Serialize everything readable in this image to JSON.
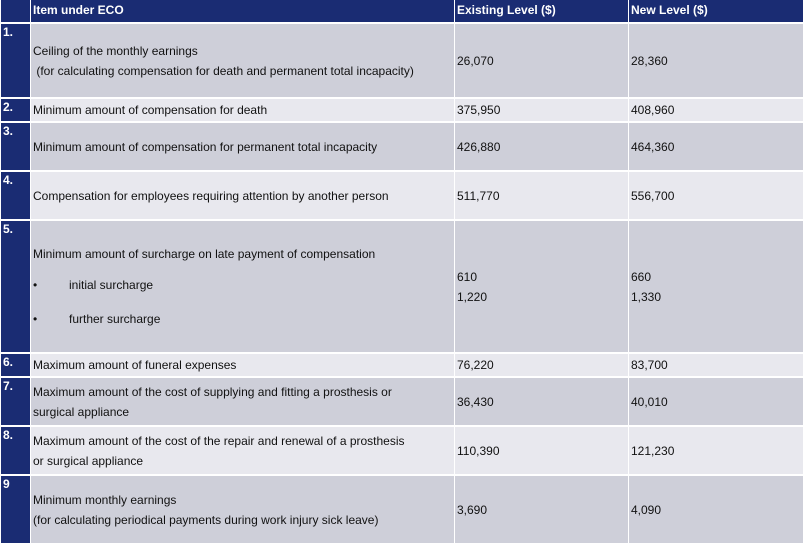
{
  "headers": {
    "item": "Item under ECO",
    "existing": "Existing Level ($)",
    "new": "New Level ($)"
  },
  "rows": [
    {
      "num": "1.",
      "lines": [
        "Ceiling of the monthly earnings",
        " (for calculating compensation for death and permanent total incapacity)"
      ],
      "existing": "26,070",
      "new": "28,360"
    },
    {
      "num": "2.",
      "lines": [
        "Minimum amount of compensation for death"
      ],
      "existing": "375,950",
      "new": "408,960"
    },
    {
      "num": "3.",
      "lines": [
        "Minimum amount of compensation for permanent total incapacity"
      ],
      "existing": "426,880",
      "new": "464,360"
    },
    {
      "num": "4.",
      "lines": [
        "Compensation for employees requiring attention by another person"
      ],
      "existing": "511,770",
      "new": "556,700"
    },
    {
      "num": "5.",
      "lines": [
        "Minimum amount of surcharge on late payment of compensation"
      ],
      "bullets": [
        "initial surcharge",
        "further surcharge"
      ],
      "bullet_glyph": "•",
      "existing_values": [
        "610",
        "1,220"
      ],
      "new_values": [
        "660",
        "1,330"
      ]
    },
    {
      "num": "6.",
      "lines": [
        "Maximum amount of funeral expenses"
      ],
      "existing": "76,220",
      "new": "83,700"
    },
    {
      "num": "7.",
      "lines": [
        "Maximum amount of the cost of supplying and fitting a prosthesis or",
        "surgical appliance"
      ],
      "existing": "36,430",
      "new": "40,010"
    },
    {
      "num": "8.",
      "lines": [
        "Maximum amount of the cost of the repair and renewal of a prosthesis",
        "or surgical appliance"
      ],
      "existing": "110,390",
      "new": "121,230"
    },
    {
      "num": "9",
      "lines": [
        "Minimum monthly earnings",
        "(for calculating periodical payments during work injury sick leave)"
      ],
      "existing": "3,690",
      "new": "4,090"
    }
  ],
  "colors": {
    "header_bg": "#1a2c73",
    "cell_bg": "#cecfd9",
    "cell_bg_light": "#e8e8ee"
  }
}
